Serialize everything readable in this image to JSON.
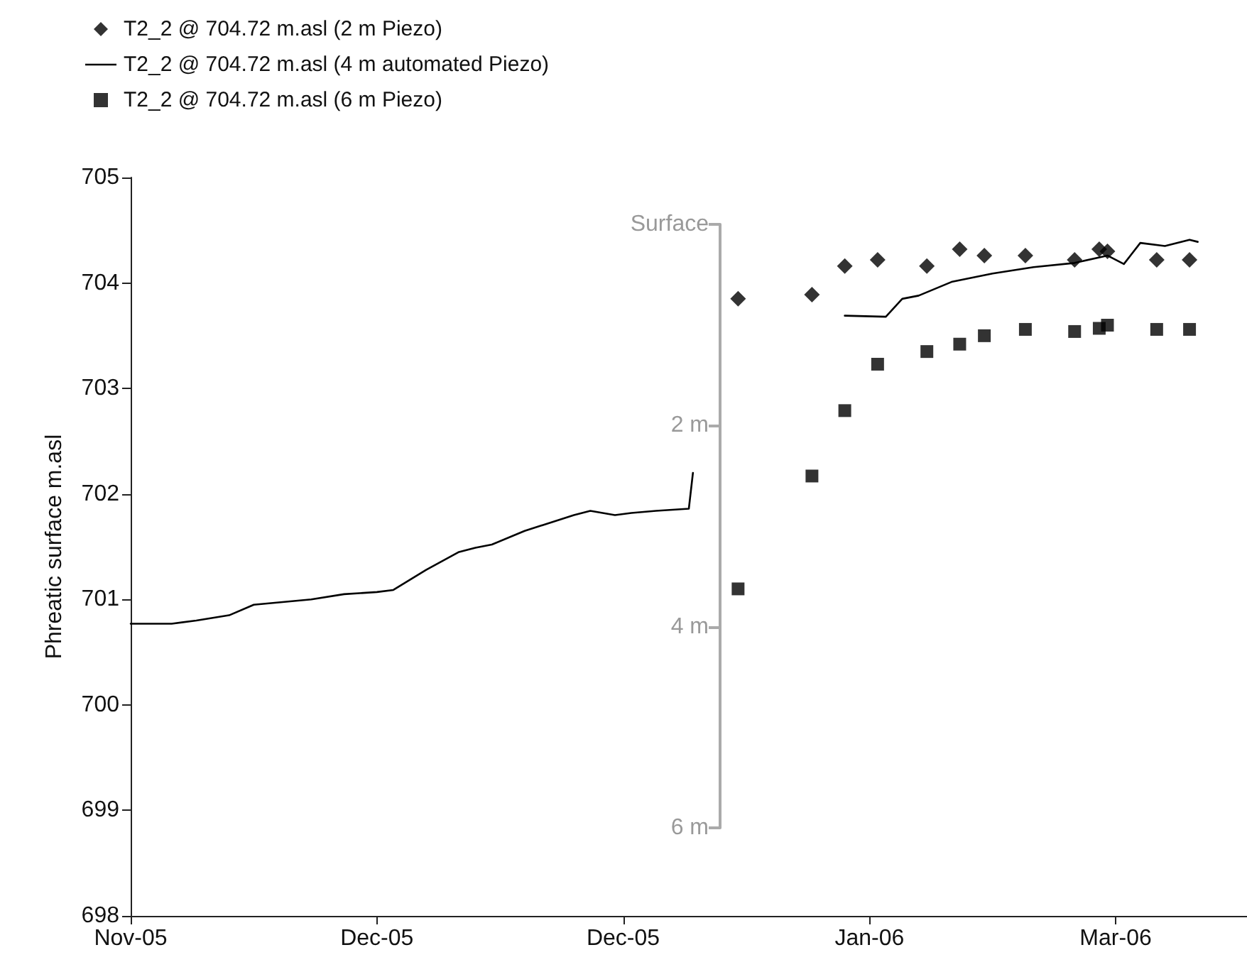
{
  "chart_data": {
    "type": "scatter",
    "ylabel": "Phreatic surface m.asl",
    "xlim": [
      "2005-11-01",
      "2006-03-17"
    ],
    "xticks": [
      {
        "value": "2005-11-01",
        "label": "Nov-05"
      },
      {
        "value": "2005-12-01",
        "label": "Dec-05"
      },
      {
        "value": "2005-12-31",
        "label": "Dec-05"
      },
      {
        "value": "2006-01-30",
        "label": "Jan-06"
      },
      {
        "value": "2006-03-01",
        "label": "Mar-06"
      }
    ],
    "ylim": [
      698,
      705
    ],
    "yticks": [
      698,
      699,
      700,
      701,
      702,
      703,
      704,
      705
    ],
    "y2lim": [
      6,
      0
    ],
    "y2ticks": [
      {
        "value": 0,
        "label": "Surface"
      },
      {
        "value": 2,
        "label": "2 m"
      },
      {
        "value": 4,
        "label": "4 m"
      },
      {
        "value": 6,
        "label": "6 m"
      }
    ],
    "grid": false,
    "legend": "top left",
    "series": [
      {
        "name": "T2_2 @ 704.72 m.asl (2 m Piezo)",
        "marker": "diamond",
        "color": "#000000",
        "x": [
          "2006-01-14",
          "2006-01-23",
          "2006-01-27",
          "2006-01-31",
          "2006-02-06",
          "2006-02-10",
          "2006-02-13",
          "2006-02-18",
          "2006-02-24",
          "2006-02-27",
          "2006-02-28",
          "2006-03-06",
          "2006-03-10"
        ],
        "values": [
          703.85,
          703.89,
          704.16,
          704.22,
          704.16,
          704.32,
          704.26,
          704.26,
          704.22,
          704.32,
          704.3,
          704.22,
          704.22
        ]
      },
      {
        "name": "T2_2 @ 704.72 m.asl (4 m automated Piezo)",
        "type": "line",
        "marker": "none",
        "line_style": "solid",
        "color": "#000000",
        "x": [
          "2005-11-01",
          "2005-11-06",
          "2005-11-09",
          "2005-11-13",
          "2005-11-16",
          "2005-11-23",
          "2005-11-27",
          "2005-12-01",
          "2005-12-03",
          "2005-12-07",
          "2005-12-11",
          "2005-12-13",
          "2005-12-15",
          "2005-12-19",
          "2005-12-25",
          "2005-12-27",
          "2005-12-30",
          "2006-01-01",
          "2006-01-04",
          "2006-01-08",
          "2006-01-08T12:00",
          "2006-01-18",
          "2006-01-27",
          "2006-02-01",
          "2006-02-03",
          "2006-02-05",
          "2006-02-09",
          "2006-02-14",
          "2006-02-19",
          "2006-02-24",
          "2006-02-28",
          "2006-03-02",
          "2006-03-03",
          "2006-03-04",
          "2006-03-07",
          "2006-03-10",
          "2006-03-11"
        ],
        "values": [
          700.77,
          700.77,
          700.8,
          700.85,
          700.95,
          701.0,
          701.05,
          701.07,
          701.09,
          701.28,
          701.45,
          701.49,
          701.52,
          701.65,
          701.8,
          701.84,
          701.8,
          701.82,
          701.84,
          701.86,
          702.2,
          null,
          703.69,
          703.68,
          703.85,
          703.88,
          704.01,
          704.09,
          704.15,
          704.19,
          704.26,
          704.18,
          704.28,
          704.38,
          704.35,
          704.41,
          704.39
        ]
      },
      {
        "name": "T2_2 @ 704.72 m.asl (6 m Piezo)",
        "marker": "square",
        "color": "#000000",
        "x": [
          "2006-01-14",
          "2006-01-23",
          "2006-01-27",
          "2006-01-31",
          "2006-02-06",
          "2006-02-10",
          "2006-02-13",
          "2006-02-18",
          "2006-02-24",
          "2006-02-27",
          "2006-02-28",
          "2006-03-06",
          "2006-03-10"
        ],
        "values": [
          701.1,
          702.17,
          702.79,
          703.23,
          703.35,
          703.42,
          703.5,
          703.56,
          703.54,
          703.57,
          703.6,
          703.56,
          703.56
        ]
      }
    ]
  }
}
